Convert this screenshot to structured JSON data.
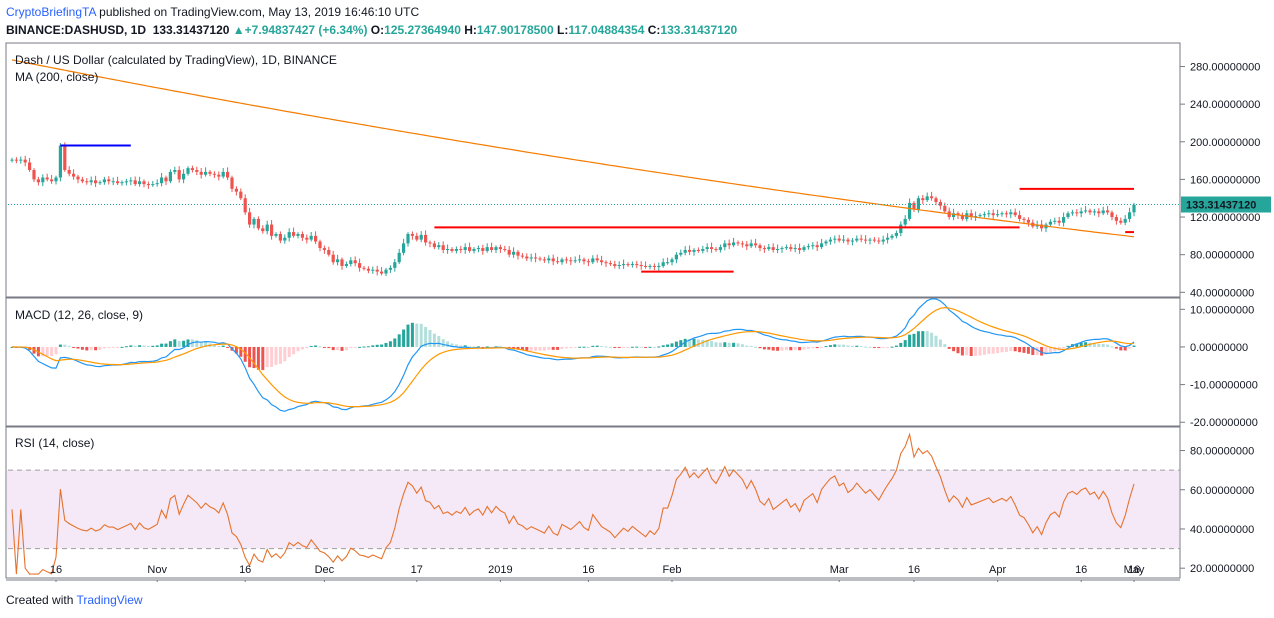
{
  "header": {
    "author": "CryptoBriefingTA",
    "published": "published on TradingView.com, May 13, 2019 16:46:10 UTC",
    "symbol": "BINANCE:DASHUSD, 1D",
    "last": "133.31437120",
    "change": "+7.94837427 (+6.34%)",
    "o_label": "O:",
    "o": "125.27364940",
    "h_label": "H:",
    "h": "147.90178500",
    "l_label": "L:",
    "l": "117.04884354",
    "c_label": "C:",
    "c": "133.31437120"
  },
  "colors": {
    "up": "#26a69a",
    "down": "#ef5350",
    "ma": "#f57c00",
    "macd": "#2196f3",
    "signal": "#ff9800",
    "rsi": "#e6732d",
    "hline_red": "#ff0000",
    "hline_blue": "#0000ff"
  },
  "footer": {
    "created": "Created with",
    "brand": "TradingView"
  },
  "chart_data": [
    {
      "type": "candlestick",
      "title": "Dash / US Dollar (calculated by TradingView), 1D, BINANCE",
      "indicator": "MA (200, close)",
      "ylim": [
        35,
        305
      ],
      "y_ticks": [
        280,
        240,
        200,
        160,
        120,
        80,
        40
      ],
      "y_tick_labels": [
        "280.00000000",
        "240.00000000",
        "200.00000000",
        "160.00000000",
        "120.00000000",
        "80.00000000",
        "40.00000000"
      ],
      "last_price_label": "133.31437120",
      "last_price": 133.31,
      "x_axis_labels": [
        "16",
        "Nov",
        "16",
        "Dec",
        "17",
        "2019",
        "16",
        "Feb",
        "Mar",
        "16",
        "Apr",
        "16",
        "May",
        "16"
      ],
      "series": [
        {
          "name": "DASHUSD",
          "closes": [
            181,
            180,
            181,
            178,
            170,
            160,
            157,
            162,
            160,
            158,
            162,
            196,
            170,
            166,
            163,
            160,
            158,
            157,
            159,
            156,
            157,
            160,
            158,
            158,
            156,
            157,
            158,
            159,
            155,
            158,
            155,
            154,
            155,
            156,
            162,
            158,
            168,
            170,
            160,
            166,
            172,
            170,
            168,
            165,
            168,
            166,
            165,
            163,
            168,
            162,
            150,
            147,
            140,
            125,
            112,
            118,
            108,
            105,
            112,
            100,
            102,
            95,
            98,
            104,
            100,
            102,
            98,
            96,
            100,
            94,
            87,
            85,
            80,
            72,
            75,
            68,
            70,
            74,
            71,
            66,
            65,
            63,
            64,
            62,
            60,
            64,
            66,
            72,
            82,
            92,
            102,
            100,
            96,
            101,
            93,
            92,
            88,
            90,
            85,
            86,
            84,
            86,
            85,
            88,
            84,
            86,
            87,
            84,
            88,
            85,
            88,
            86,
            85,
            80,
            83,
            79,
            78,
            76,
            77,
            76,
            75,
            74,
            76,
            73,
            72,
            75,
            74,
            73,
            74,
            75,
            73,
            72,
            76,
            74,
            72,
            71,
            70,
            68,
            69,
            70,
            69,
            70,
            69,
            68,
            67,
            68,
            67,
            68,
            72,
            72,
            75,
            80,
            82,
            85,
            83,
            85,
            84,
            86,
            88,
            86,
            85,
            88,
            92,
            90,
            93,
            92,
            91,
            89,
            92,
            90,
            87,
            86,
            88,
            85,
            86,
            87,
            88,
            86,
            87,
            85,
            88,
            89,
            90,
            88,
            92,
            94,
            96,
            97,
            95,
            96,
            94,
            95,
            97,
            96,
            95,
            96,
            95,
            94,
            96,
            98,
            100,
            103,
            112,
            118,
            135,
            128,
            140,
            138,
            142,
            140,
            136,
            132,
            126,
            120,
            124,
            122,
            118,
            124,
            120,
            121,
            122,
            123,
            124,
            122,
            123,
            124,
            123,
            125,
            122,
            118,
            117,
            114,
            110,
            112,
            108,
            112,
            115,
            116,
            114,
            120,
            124,
            125,
            124,
            126,
            127,
            125,
            126,
            124,
            127,
            125,
            120,
            116,
            114,
            118,
            125,
            133
          ]
        },
        {
          "name": "MA (200, close)",
          "start_value": 287,
          "end_value": 99
        }
      ],
      "annotations": [
        {
          "type": "hline",
          "color": "blue",
          "value": 196
        },
        {
          "type": "hline",
          "color": "red",
          "value": 109
        },
        {
          "type": "hline",
          "color": "red",
          "value": 62
        },
        {
          "type": "hline",
          "color": "red",
          "value": 150
        },
        {
          "type": "hline",
          "color": "red",
          "value": 104
        }
      ]
    },
    {
      "type": "macd",
      "title": "MACD (12, 26, close, 9)",
      "ylim": [
        -21,
        13
      ],
      "y_ticks": [
        10,
        0,
        -10,
        -20
      ],
      "y_tick_labels": [
        "10.00000000",
        "0.00000000",
        "-10.00000000",
        "-20.00000000"
      ]
    },
    {
      "type": "rsi",
      "title": "RSI (14, close)",
      "ylim": [
        15,
        92
      ],
      "bands": [
        30,
        70
      ],
      "y_ticks": [
        80,
        60,
        40,
        20
      ],
      "y_tick_labels": [
        "80.00000000",
        "60.00000000",
        "40.00000000",
        "20.00000000"
      ]
    }
  ]
}
